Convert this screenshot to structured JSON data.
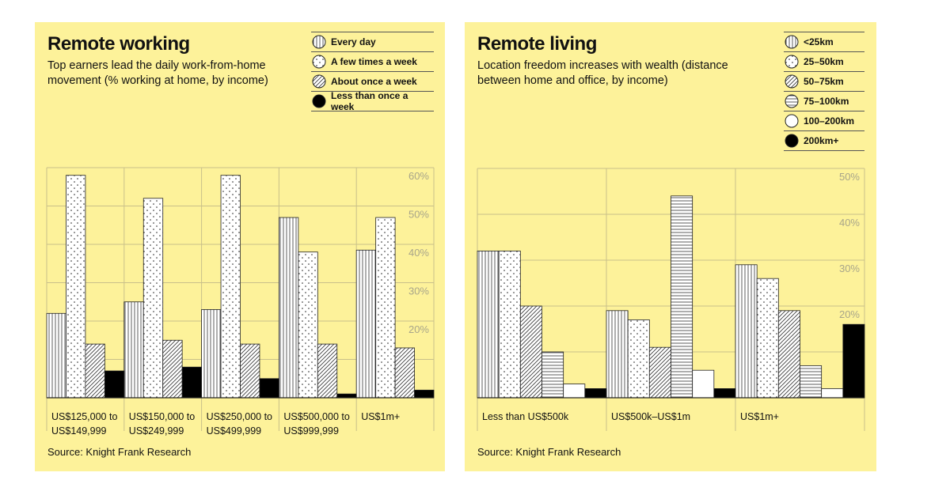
{
  "chart_data": [
    {
      "type": "bar",
      "title": "Remote working",
      "subtitle": "Top earners lead the daily work-from-home movement (% working at home, by income)",
      "source": "Source: Knight Frank Research",
      "categories": [
        [
          "US$125,000 to",
          "US$149,999"
        ],
        [
          "US$150,000 to",
          "US$249,999"
        ],
        [
          "US$250,000 to",
          "US$499,999"
        ],
        [
          "US$500,000 to",
          "US$999,999"
        ],
        [
          "US$1m+",
          ""
        ]
      ],
      "series": [
        {
          "name": "Every day",
          "pattern": "vertical",
          "values": [
            22,
            25,
            23,
            47,
            38.5
          ]
        },
        {
          "name": "A few times a week",
          "pattern": "dots",
          "values": [
            58,
            52,
            58,
            38,
            47
          ]
        },
        {
          "name": "About once a week",
          "pattern": "diagonal",
          "values": [
            14,
            15,
            14,
            14,
            13
          ]
        },
        {
          "name": "Less than once a week",
          "pattern": "solid",
          "values": [
            7,
            8,
            5,
            1,
            2
          ]
        }
      ],
      "ylim": [
        0,
        60
      ],
      "yticks": [
        "20%",
        "30%",
        "40%",
        "50%",
        "60%"
      ],
      "ytick_values": [
        20,
        30,
        40,
        50,
        60
      ],
      "grid": true,
      "legend": "top-right"
    },
    {
      "type": "bar",
      "title": "Remote living",
      "subtitle": "Location freedom increases with wealth (distance between home and office, by income)",
      "source": "Source: Knight Frank Research",
      "categories": [
        [
          "Less than US$500k",
          ""
        ],
        [
          "US$500k–US$1m",
          ""
        ],
        [
          "US$1m+",
          ""
        ]
      ],
      "series": [
        {
          "name": "<25km",
          "pattern": "vertical",
          "values": [
            32,
            19,
            29
          ]
        },
        {
          "name": "25–50km",
          "pattern": "dots",
          "values": [
            32,
            17,
            26
          ]
        },
        {
          "name": "50–75km",
          "pattern": "diagonal",
          "values": [
            20,
            11,
            19
          ]
        },
        {
          "name": "75–100km",
          "pattern": "horizontal",
          "values": [
            10,
            44,
            7
          ]
        },
        {
          "name": "100–200km",
          "pattern": "white",
          "values": [
            3,
            6,
            2
          ]
        },
        {
          "name": "200km+",
          "pattern": "solid",
          "values": [
            2,
            2,
            16
          ]
        }
      ],
      "ylim": [
        0,
        50
      ],
      "yticks": [
        "20%",
        "30%",
        "40%",
        "50%"
      ],
      "ytick_values": [
        20,
        30,
        40,
        50
      ],
      "grid": true,
      "legend": "top-right"
    }
  ],
  "colors": {
    "panel": "#fdf29a",
    "grid": "#c9c08a",
    "tick": "#a8a58a",
    "ink": "#111111"
  }
}
